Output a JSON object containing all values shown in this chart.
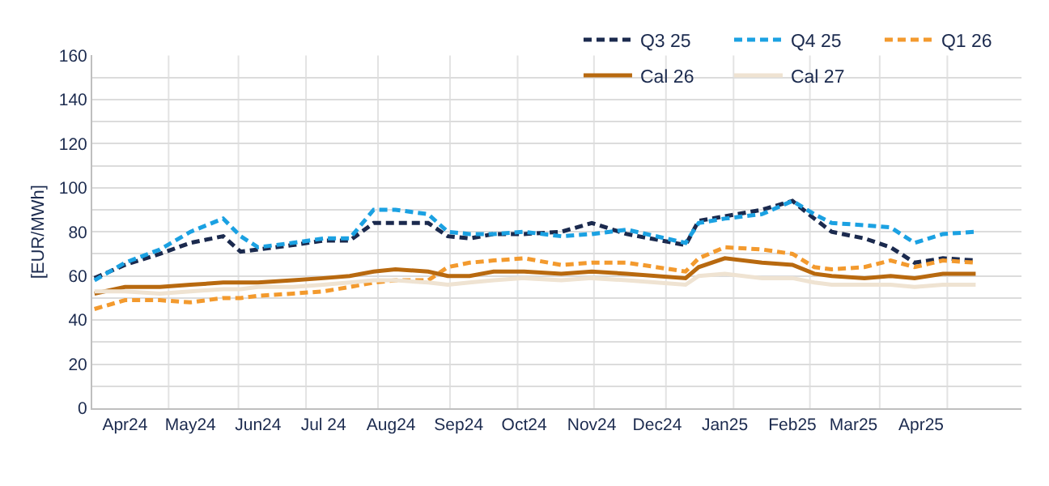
{
  "chart_data": {
    "type": "line",
    "ylabel": "[EUR/MWh]",
    "x": [
      "2024-04-01",
      "2024-04-15",
      "2024-05-01",
      "2024-05-15",
      "2024-05-30",
      "2024-06-07",
      "2024-06-15",
      "2024-07-01",
      "2024-07-15",
      "2024-07-27",
      "2024-08-07",
      "2024-08-17",
      "2024-09-01",
      "2024-09-10",
      "2024-09-20",
      "2024-10-01",
      "2024-10-15",
      "2024-11-01",
      "2024-11-15",
      "2024-12-01",
      "2024-12-28",
      "2025-01-03",
      "2025-01-15",
      "2025-02-01",
      "2025-02-15",
      "2025-02-25",
      "2025-03-05",
      "2025-03-20",
      "2025-04-01",
      "2025-04-12",
      "2025-04-25",
      "2025-05-10"
    ],
    "series": [
      {
        "name": "Q3 25",
        "color": "#1b2a4e",
        "line_style": "dashed",
        "values": [
          59,
          65,
          70,
          75,
          78,
          71,
          72,
          74,
          76,
          76,
          84,
          84,
          84,
          78,
          77,
          79,
          79,
          80,
          84,
          79,
          74,
          85,
          87,
          90,
          94,
          86,
          80,
          77,
          73,
          66,
          68,
          67
        ]
      },
      {
        "name": "Q4 25",
        "color": "#1ba1e2",
        "line_style": "dashed",
        "values": [
          58,
          66,
          72,
          80,
          86,
          78,
          73,
          75,
          77,
          77,
          90,
          90,
          88,
          80,
          79,
          79,
          80,
          78,
          79,
          81,
          75,
          84,
          86,
          88,
          94,
          88,
          84,
          83,
          82,
          75,
          79,
          80
        ]
      },
      {
        "name": "Q1 26",
        "color": "#f39a2e",
        "line_style": "dashed",
        "values": [
          45,
          49,
          49,
          48,
          50,
          50,
          51,
          52,
          53,
          55,
          57,
          58,
          58,
          64,
          66,
          67,
          68,
          65,
          66,
          66,
          62,
          68,
          73,
          72,
          70,
          64,
          63,
          64,
          67,
          64,
          67,
          66
        ]
      },
      {
        "name": "Cal 26",
        "color": "#b8690f",
        "line_style": "solid",
        "values": [
          52,
          55,
          55,
          56,
          57,
          57,
          57,
          58,
          59,
          60,
          62,
          63,
          62,
          60,
          60,
          62,
          62,
          61,
          62,
          61,
          59,
          64,
          68,
          66,
          65,
          61,
          60,
          59,
          60,
          59,
          61,
          61
        ]
      },
      {
        "name": "Cal 27",
        "color": "#efe3d2",
        "line_style": "solid",
        "values": [
          53,
          53,
          52,
          53,
          54,
          54,
          55,
          55,
          56,
          57,
          58,
          58,
          57,
          56,
          57,
          58,
          59,
          58,
          59,
          58,
          56,
          60,
          61,
          59,
          59,
          57,
          56,
          56,
          56,
          55,
          56,
          56
        ]
      }
    ],
    "xlim": [
      "2024-03-31",
      "2025-05-31"
    ],
    "xticks": [
      {
        "value": "2024-04-15",
        "label": "Apr24"
      },
      {
        "value": "2024-05-15",
        "label": "May24"
      },
      {
        "value": "2024-06-15",
        "label": "Jun24"
      },
      {
        "value": "2024-07-15",
        "label": "Jul 24"
      },
      {
        "value": "2024-08-15",
        "label": "Aug24"
      },
      {
        "value": "2024-09-15",
        "label": "Sep24"
      },
      {
        "value": "2024-10-15",
        "label": "Oct24"
      },
      {
        "value": "2024-11-15",
        "label": "Nov24"
      },
      {
        "value": "2024-12-15",
        "label": "Dec24"
      },
      {
        "value": "2025-01-15",
        "label": "Jan25"
      },
      {
        "value": "2025-02-15",
        "label": "Feb25"
      },
      {
        "value": "2025-03-15",
        "label": "Mar25"
      },
      {
        "value": "2025-04-15",
        "label": "Apr25"
      },
      {
        "value": "2024-05-05",
        "label": null
      },
      {
        "value": "2024-06-06",
        "label": null
      },
      {
        "value": "2024-07-07",
        "label": null
      },
      {
        "value": "2024-08-09",
        "label": null
      },
      {
        "value": "2024-09-11",
        "label": null
      },
      {
        "value": "2024-10-12",
        "label": null
      },
      {
        "value": "2024-11-16",
        "label": null
      },
      {
        "value": "2024-12-19",
        "label": null
      },
      {
        "value": "2025-01-19",
        "label": null
      },
      {
        "value": "2025-02-23",
        "label": null
      },
      {
        "value": "2025-03-27",
        "label": null
      },
      {
        "value": "2025-04-27",
        "label": null
      }
    ],
    "ylim": [
      0,
      160
    ],
    "yticks": [
      0,
      {
        "value": 10,
        "label": null
      },
      20,
      {
        "value": 30,
        "label": null
      },
      40,
      {
        "value": 50,
        "label": null
      },
      60,
      {
        "value": 70,
        "label": null
      },
      80,
      {
        "value": 90,
        "label": null
      },
      100,
      {
        "value": 110,
        "label": null
      },
      120,
      {
        "value": 130,
        "label": null
      },
      140,
      {
        "value": 150,
        "label": null
      },
      160
    ],
    "grid": true,
    "legend": "top right",
    "marker": "none"
  }
}
